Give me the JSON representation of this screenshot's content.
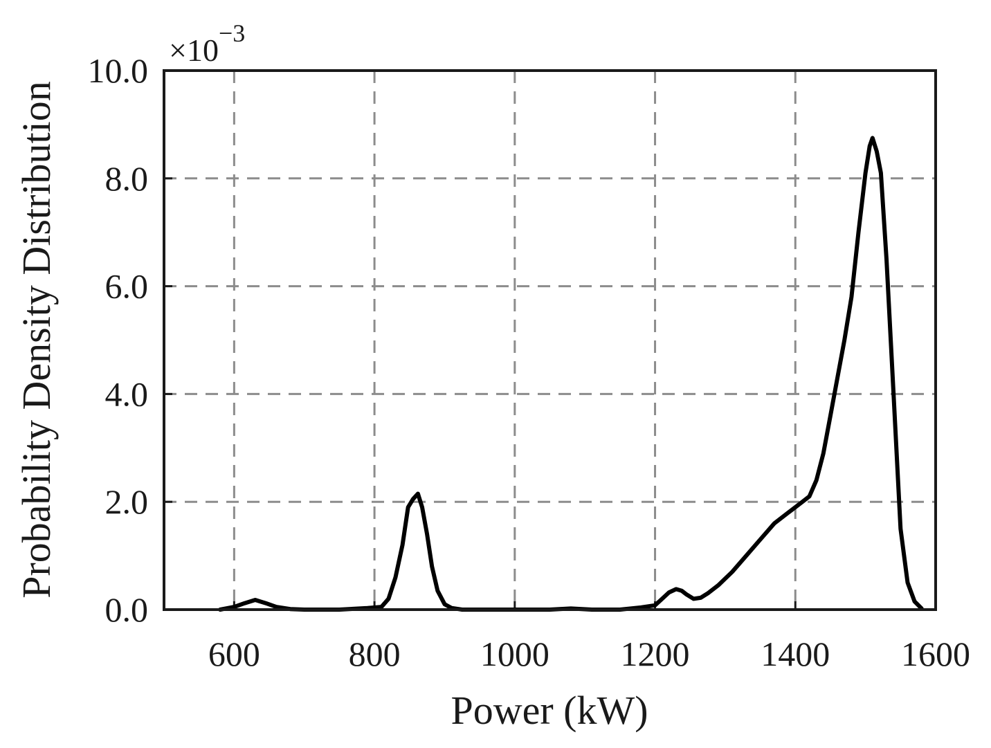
{
  "chart_data": {
    "type": "line",
    "xlabel": "Power (kW)",
    "ylabel": "Probability Density Distribution",
    "y_multiplier": {
      "base": "×10",
      "exponent": "−3"
    },
    "xlim": [
      500,
      1600
    ],
    "ylim": [
      0,
      10.0
    ],
    "y_scale_factor": 0.001,
    "x_ticks": [
      600,
      800,
      1000,
      1200,
      1400,
      1600
    ],
    "y_ticks": [
      "0.0",
      "2.0",
      "4.0",
      "6.0",
      "8.0",
      "10.0"
    ],
    "y_tick_values": [
      0,
      2,
      4,
      6,
      8,
      10
    ],
    "grid": true,
    "grid_style": "dashed",
    "line_color": "#000000",
    "grid_color": "#8c8c8c",
    "series": [
      {
        "x": [
          580,
          600,
          615,
          630,
          645,
          660,
          680,
          700,
          750,
          790,
          810,
          820,
          830,
          840,
          848,
          855,
          862,
          868,
          875,
          882,
          890,
          900,
          910,
          925,
          950,
          1000,
          1050,
          1080,
          1110,
          1150,
          1180,
          1200,
          1210,
          1220,
          1230,
          1238,
          1245,
          1255,
          1265,
          1275,
          1290,
          1310,
          1330,
          1350,
          1370,
          1390,
          1410,
          1420,
          1430,
          1440,
          1450,
          1460,
          1470,
          1480,
          1490,
          1500,
          1506,
          1510,
          1516,
          1522,
          1530,
          1540,
          1550,
          1560,
          1570,
          1580
        ],
        "y": [
          0.0,
          0.05,
          0.12,
          0.18,
          0.12,
          0.05,
          0.01,
          0.0,
          0.0,
          0.03,
          0.05,
          0.2,
          0.6,
          1.2,
          1.9,
          2.05,
          2.15,
          1.9,
          1.4,
          0.8,
          0.35,
          0.1,
          0.03,
          0.0,
          0.0,
          0.0,
          0.0,
          0.02,
          0.0,
          0.0,
          0.04,
          0.08,
          0.2,
          0.32,
          0.38,
          0.35,
          0.28,
          0.2,
          0.22,
          0.3,
          0.45,
          0.7,
          1.0,
          1.3,
          1.6,
          1.8,
          2.0,
          2.1,
          2.4,
          2.9,
          3.6,
          4.3,
          5.0,
          5.8,
          7.0,
          8.1,
          8.6,
          8.75,
          8.5,
          8.1,
          6.5,
          4.0,
          1.5,
          0.5,
          0.15,
          0.02
        ]
      }
    ]
  }
}
